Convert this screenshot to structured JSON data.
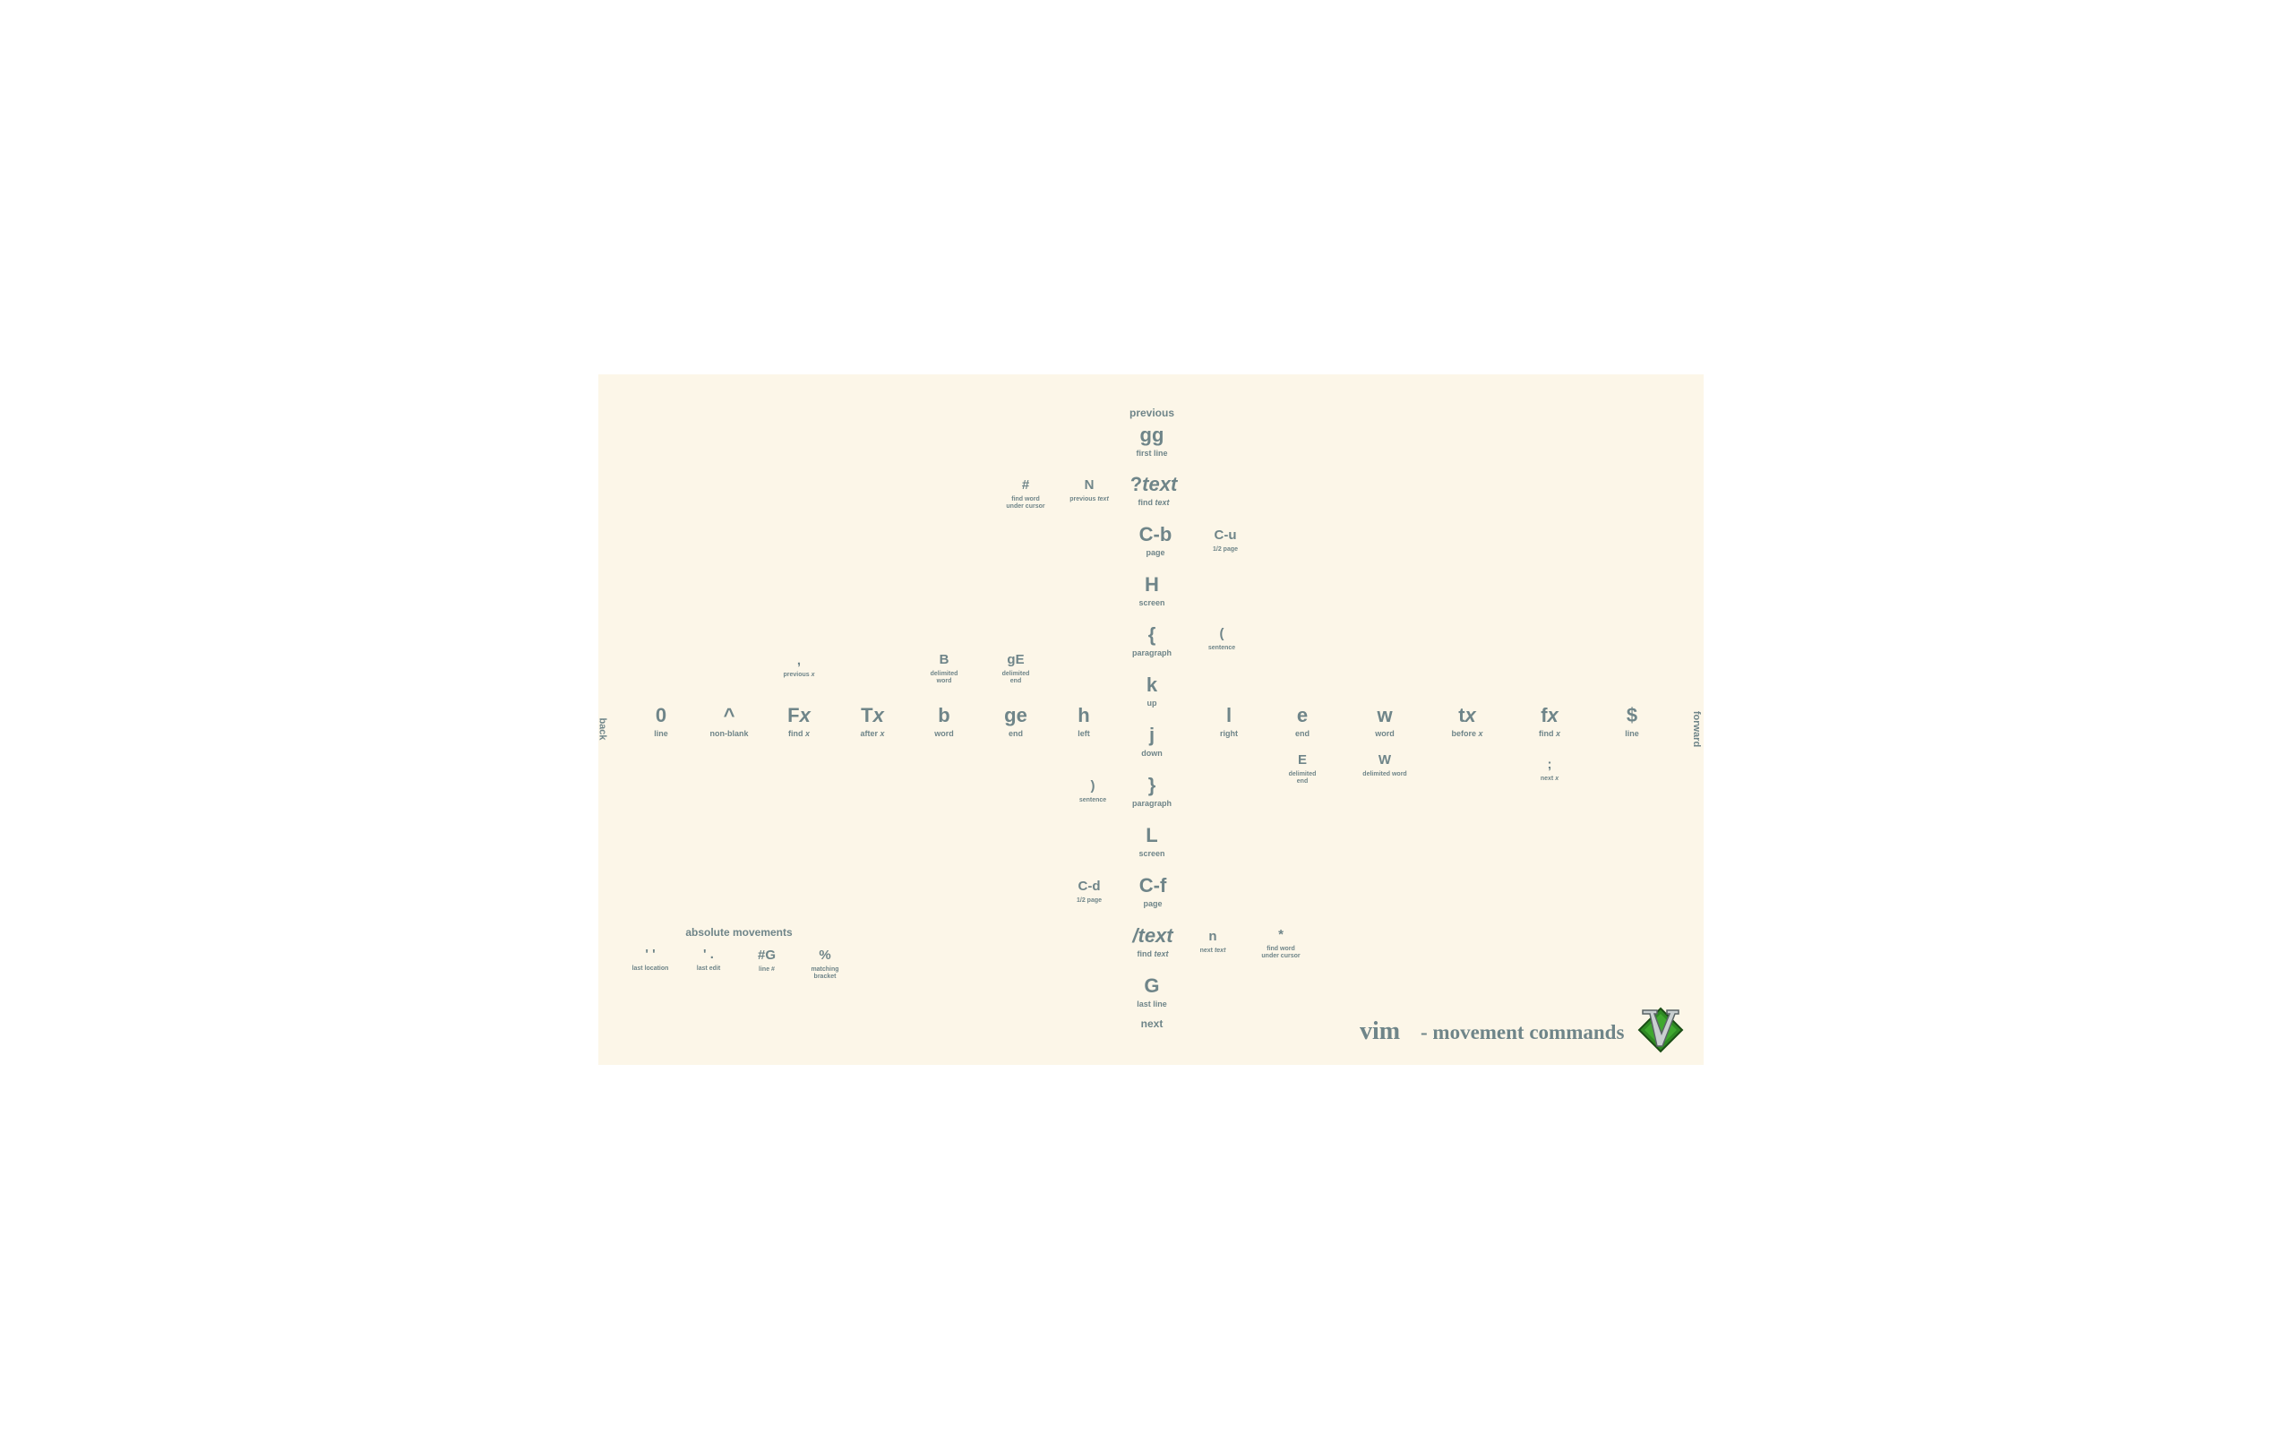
{
  "title": {
    "vim": "vim",
    "subtitle": "- movement commands"
  },
  "directions": {
    "back": "back",
    "forward": "forward",
    "previous": "previous",
    "next": "next"
  },
  "section_label": "absolute movements",
  "vertical": {
    "gg": {
      "key": "gg",
      "desc": "first line"
    },
    "search_back": {
      "key_prefix": "?",
      "key_italic": "text",
      "desc_prefix": "find ",
      "desc_italic": "text"
    },
    "cb": {
      "key": "C-b",
      "desc": "page"
    },
    "H": {
      "key": "H",
      "desc": "screen"
    },
    "lbrace": {
      "key": "{",
      "desc": "paragraph"
    },
    "k": {
      "key": "k",
      "desc": "up"
    },
    "j": {
      "key": "j",
      "desc": "down"
    },
    "rbrace": {
      "key": "}",
      "desc": "paragraph"
    },
    "L": {
      "key": "L",
      "desc": "screen"
    },
    "cf": {
      "key": "C-f",
      "desc": "page"
    },
    "search_fwd": {
      "key_prefix": "/",
      "key_italic": "text",
      "desc_prefix": "find ",
      "desc_italic": "text"
    },
    "G": {
      "key": "G",
      "desc": "last line"
    }
  },
  "horizontal": {
    "zero": {
      "key": "0",
      "desc": "line"
    },
    "caret": {
      "key": "^",
      "desc": "non-blank"
    },
    "Fx": {
      "key_prefix": "F",
      "key_italic": "x",
      "desc_prefix": "find ",
      "desc_italic": "x"
    },
    "Tx": {
      "key_prefix": "T",
      "key_italic": "x",
      "desc_prefix": "after ",
      "desc_italic": "x"
    },
    "b": {
      "key": "b",
      "desc": "word"
    },
    "ge": {
      "key": "ge",
      "desc": "end"
    },
    "h": {
      "key": "h",
      "desc": "left"
    },
    "l": {
      "key": "l",
      "desc": "right"
    },
    "e": {
      "key": "e",
      "desc": "end"
    },
    "w": {
      "key": "w",
      "desc": "word"
    },
    "tx": {
      "key_prefix": "t",
      "key_italic": "x",
      "desc_prefix": "before ",
      "desc_italic": "x"
    },
    "fx": {
      "key_prefix": "f",
      "key_italic": "x",
      "desc_prefix": "find ",
      "desc_italic": "x"
    },
    "dollar": {
      "key": "$",
      "desc": "line"
    }
  },
  "secondary": {
    "hash": {
      "key": "#",
      "desc": "find word\nunder cursor"
    },
    "N": {
      "key": "N",
      "desc_prefix": "previous ",
      "desc_italic": "text"
    },
    "cu": {
      "key": "C-u",
      "desc": "1/2 page"
    },
    "lparen": {
      "key": "(",
      "desc": "sentence"
    },
    "comma": {
      "key": ",",
      "desc_prefix": "previous ",
      "desc_italic": "x"
    },
    "B": {
      "key": "B",
      "desc": "delimited\nword"
    },
    "gE": {
      "key": "gE",
      "desc": "delimited\nend"
    },
    "E": {
      "key": "E",
      "desc": "delimited\nend"
    },
    "W": {
      "key": "W",
      "desc": "delimited word"
    },
    "semicolon": {
      "key": ";",
      "desc_prefix": "next ",
      "desc_italic": "x"
    },
    "rparen": {
      "key": ")",
      "desc": "sentence"
    },
    "cd": {
      "key": "C-d",
      "desc": "1/2 page"
    },
    "n": {
      "key": "n",
      "desc_prefix": "next ",
      "desc_italic": "text"
    },
    "star": {
      "key": "*",
      "desc": "find word\nunder cursor"
    }
  },
  "absolute": {
    "lastloc": {
      "key": "' '",
      "desc": "last location"
    },
    "lastedit": {
      "key": "' .",
      "desc": "last edit"
    },
    "lineno": {
      "key": "#G",
      "desc": "line #"
    },
    "percent": {
      "key": "%",
      "desc": "matching\nbracket"
    }
  },
  "colors": {
    "ink": "#6f8589",
    "paper": "#fcf6e8",
    "logo_green": "#2f8a24"
  }
}
